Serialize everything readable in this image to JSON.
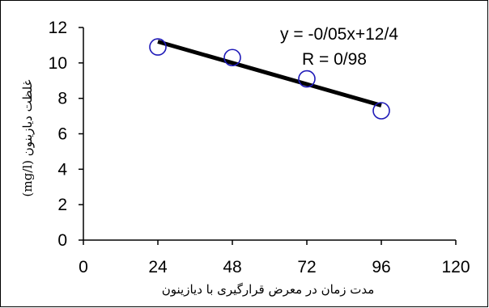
{
  "chart_data": {
    "type": "scatter",
    "title": "",
    "xlabel": "مدت زمان در معرض قرارگیری با دیازینون",
    "ylabel": "غلظت دیازینون (mg/l)",
    "xlim": [
      0,
      120
    ],
    "ylim": [
      0,
      12
    ],
    "xticks": [
      0,
      24,
      48,
      72,
      96,
      120
    ],
    "yticks": [
      0,
      2,
      4,
      6,
      8,
      10,
      12
    ],
    "grid": false,
    "series": [
      {
        "x": [
          24,
          48,
          72,
          96
        ],
        "y": [
          10.9,
          10.3,
          9.1,
          7.3
        ],
        "marker": "open-circle",
        "color": "#1f1ab8"
      }
    ],
    "trendline": {
      "x": [
        24,
        96
      ],
      "y": [
        11.2,
        7.6
      ],
      "color": "#000000"
    },
    "annotations": {
      "equation": "y = -0/05x+12/4",
      "r_value": "R = 0/98"
    }
  }
}
